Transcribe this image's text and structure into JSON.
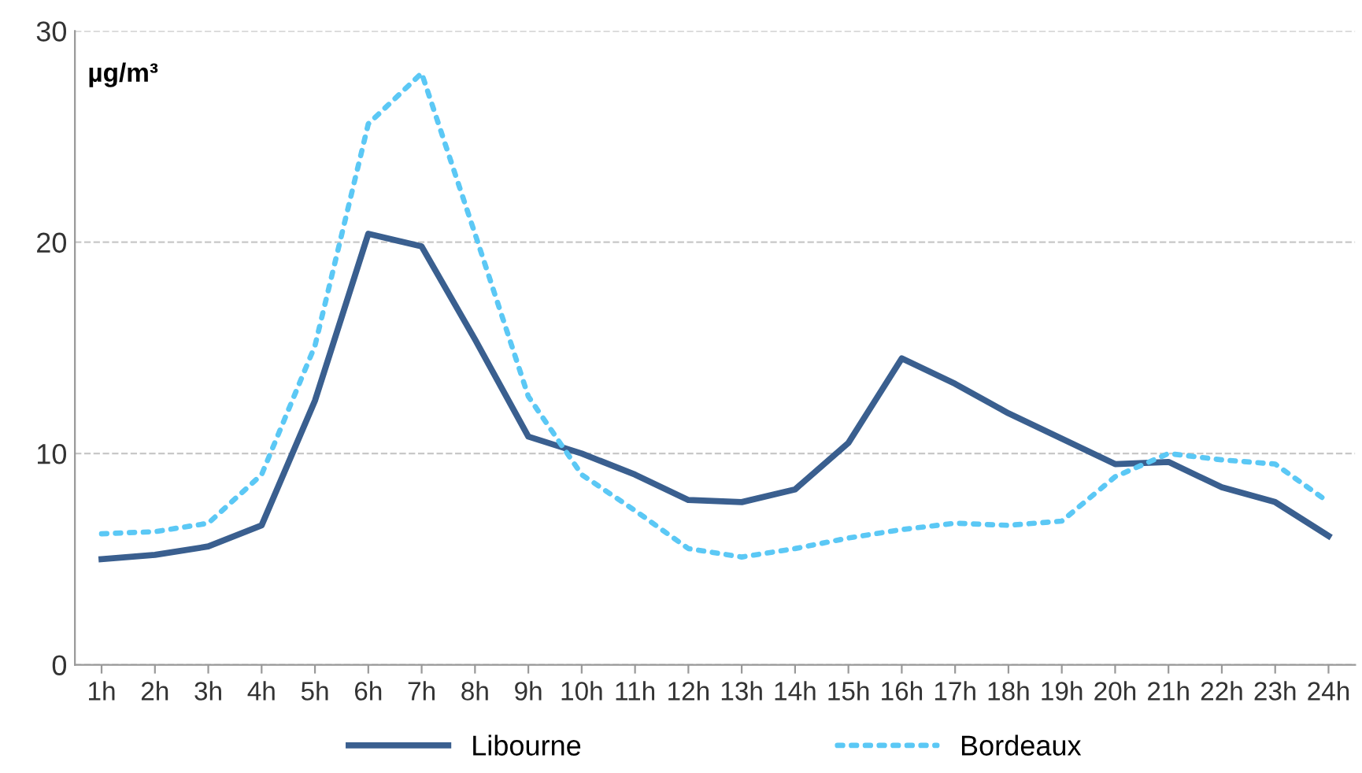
{
  "chart_data": {
    "type": "line",
    "ylabel": "µg/m³",
    "categories": [
      "1h",
      "2h",
      "3h",
      "4h",
      "5h",
      "6h",
      "7h",
      "8h",
      "9h",
      "10h",
      "11h",
      "12h",
      "13h",
      "14h",
      "15h",
      "16h",
      "17h",
      "18h",
      "19h",
      "20h",
      "21h",
      "22h",
      "23h",
      "24h"
    ],
    "series": [
      {
        "name": "Libourne",
        "color": "#3a5f8f",
        "line_style": "solid",
        "values": [
          5.0,
          5.2,
          5.6,
          6.6,
          12.5,
          20.4,
          19.8,
          15.4,
          10.8,
          10.0,
          9.0,
          7.8,
          7.7,
          8.3,
          10.5,
          14.5,
          13.3,
          11.9,
          10.7,
          9.5,
          9.6,
          8.4,
          7.7,
          6.1
        ]
      },
      {
        "name": "Bordeaux",
        "color": "#5bc8f5",
        "line_style": "dotted",
        "values": [
          6.2,
          6.3,
          6.7,
          9.0,
          15.1,
          25.6,
          28.0,
          20.4,
          12.7,
          9.0,
          7.3,
          5.5,
          5.1,
          5.5,
          6.0,
          6.4,
          6.7,
          6.6,
          6.8,
          8.9,
          10.0,
          9.7,
          9.5,
          7.7
        ]
      }
    ],
    "ylim": [
      0,
      30
    ],
    "yticks": [
      0,
      10,
      20,
      30
    ],
    "grid": "y",
    "legend": "bottom",
    "marker": "none"
  }
}
